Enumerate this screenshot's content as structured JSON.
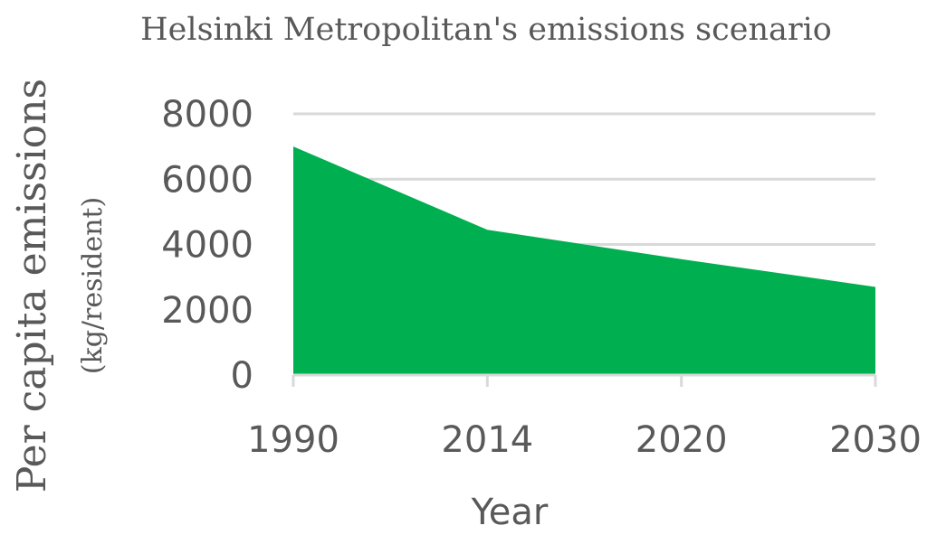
{
  "chart_data": {
    "type": "area",
    "title": "Helsinki Metropolitan's emissions scenario",
    "xlabel": "Year",
    "ylabel": "Per capita emissions",
    "ylabel_unit": "(kg/resident)",
    "categories": [
      "1990",
      "2014",
      "2020",
      "2030"
    ],
    "y_ticks": [
      "0",
      "2000",
      "4000",
      "6000",
      "8000"
    ],
    "ylim": [
      0,
      8000
    ],
    "grid": true,
    "legend": "none",
    "series": [
      {
        "values": [
          7000,
          4450,
          3550,
          2700
        ],
        "color": "#00b050"
      }
    ]
  }
}
